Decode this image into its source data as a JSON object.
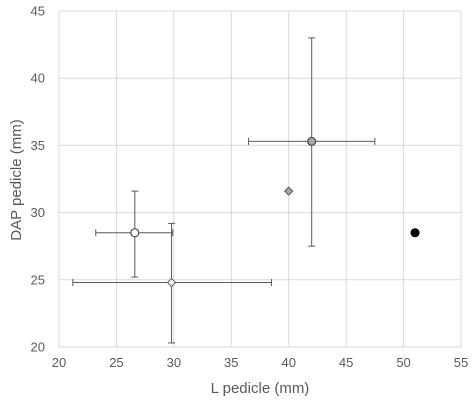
{
  "chart_data": {
    "type": "scatter",
    "title": "",
    "xlabel": "L pedicle (mm)",
    "ylabel": "DAP pedicle (mm)",
    "xlim": [
      20,
      55
    ],
    "ylim": [
      20,
      45
    ],
    "xticks": [
      20,
      25,
      30,
      35,
      40,
      45,
      50,
      55
    ],
    "yticks": [
      20,
      25,
      30,
      35,
      40,
      45
    ],
    "grid": true,
    "legend": "none",
    "points": [
      {
        "x": 26.6,
        "y": 28.5,
        "x_err": [
          23.2,
          29.9
        ],
        "y_err": [
          25.2,
          31.6
        ],
        "marker": "circle",
        "fill": "#ffffff"
      },
      {
        "x": 29.8,
        "y": 24.8,
        "x_err": [
          21.2,
          38.5
        ],
        "y_err": [
          20.3,
          29.2
        ],
        "marker": "diamond",
        "fill": "#ffffff"
      },
      {
        "x": 42.0,
        "y": 35.3,
        "x_err": [
          36.5,
          47.5
        ],
        "y_err": [
          27.5,
          43.0
        ],
        "marker": "circle",
        "fill": "#a6a6a6"
      },
      {
        "x": 40.0,
        "y": 31.6,
        "marker": "diamond",
        "fill": "#a6a6a6"
      },
      {
        "x": 51.0,
        "y": 28.5,
        "marker": "circle",
        "fill": "#000000"
      }
    ]
  }
}
